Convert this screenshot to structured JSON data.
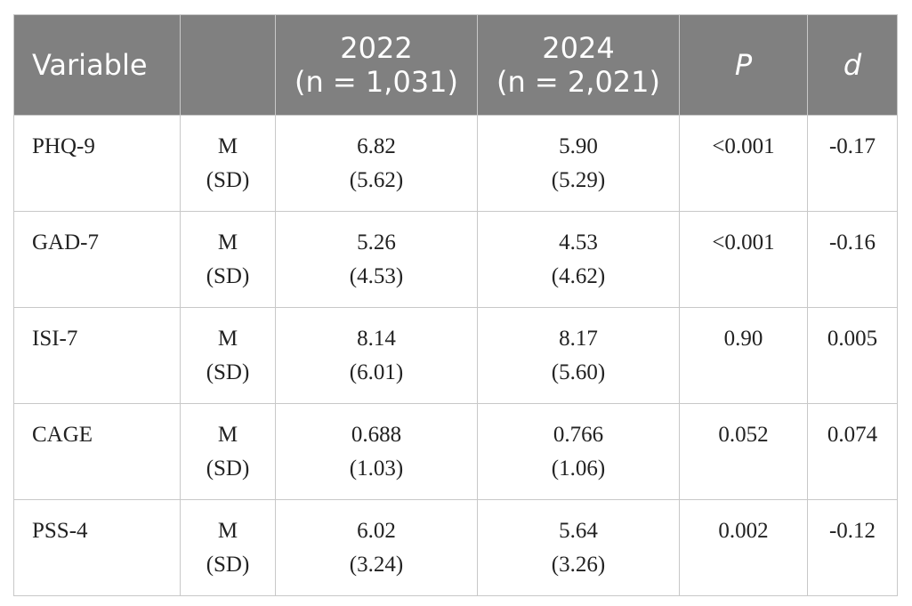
{
  "header": {
    "variable": "Variable",
    "stat": "",
    "y2022_line1": "2022",
    "y2022_line2": "(n = 1,031)",
    "y2024_line1": "2024",
    "y2024_line2": "(n = 2,021)",
    "p": "P",
    "d": "d"
  },
  "rows": [
    {
      "variable": "PHQ-9",
      "stat_line1": "M",
      "stat_line2": "(SD)",
      "m2022": "6.82",
      "sd2022": "(5.62)",
      "m2024": "5.90",
      "sd2024": "(5.29)",
      "p": "<0.001",
      "d": "-0.17"
    },
    {
      "variable": "GAD-7",
      "stat_line1": "M",
      "stat_line2": "(SD)",
      "m2022": "5.26",
      "sd2022": "(4.53)",
      "m2024": "4.53",
      "sd2024": "(4.62)",
      "p": "<0.001",
      "d": "-0.16"
    },
    {
      "variable": "ISI-7",
      "stat_line1": "M",
      "stat_line2": "(SD)",
      "m2022": "8.14",
      "sd2022": "(6.01)",
      "m2024": "8.17",
      "sd2024": "(5.60)",
      "p": "0.90",
      "d": "0.005"
    },
    {
      "variable": "CAGE",
      "stat_line1": "M",
      "stat_line2": "(SD)",
      "m2022": "0.688",
      "sd2022": "(1.03)",
      "m2024": "0.766",
      "sd2024": "(1.06)",
      "p": "0.052",
      "d": "0.074"
    },
    {
      "variable": "PSS-4",
      "stat_line1": "M",
      "stat_line2": "(SD)",
      "m2022": "6.02",
      "sd2022": "(3.24)",
      "m2024": "5.64",
      "sd2024": "(3.26)",
      "p": "0.002",
      "d": "-0.12"
    }
  ],
  "colors": {
    "header_bg": "#808080",
    "header_text": "#ffffff",
    "grid": "#c8c8c8",
    "body_text": "#222222"
  }
}
